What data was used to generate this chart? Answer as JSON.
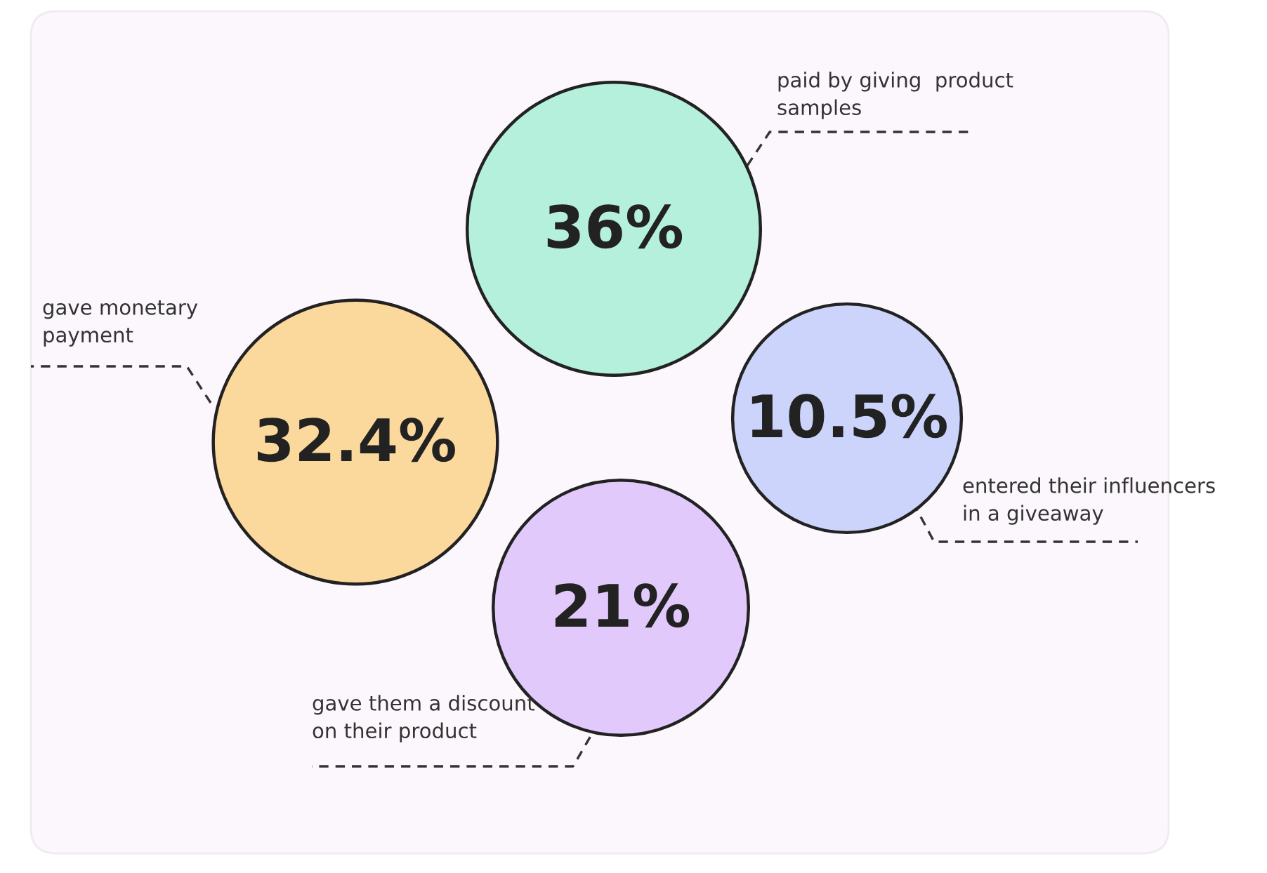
{
  "chart_data": {
    "type": "other",
    "categories": [
      "paid by giving  product\nsamples",
      "gave monetary\npayment",
      "entered their influencers\nin a giveaway",
      "gave them a discount\non their product"
    ],
    "values": [
      36,
      32.4,
      10.5,
      21
    ],
    "value_labels": [
      "36%",
      "32.4%",
      "10.5%",
      "21%"
    ],
    "colors": [
      "#b4f0dc",
      "#fbd89b",
      "#cdd4fb",
      "#e1c9fb"
    ]
  }
}
